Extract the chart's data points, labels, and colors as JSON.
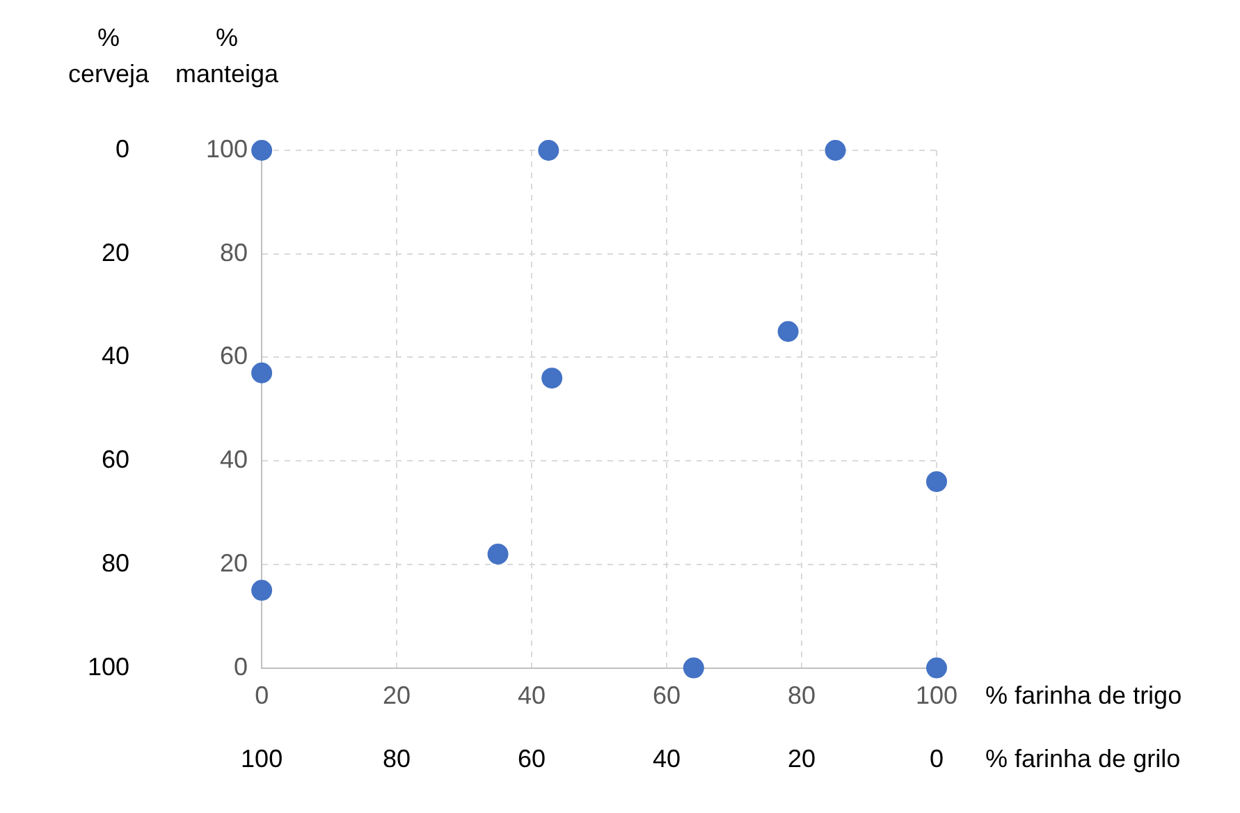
{
  "chart_data": {
    "type": "scatter",
    "xlabel": "% farinha de trigo",
    "x2label": "% farinha de grilo",
    "ylabel": "% manteiga",
    "y2label": "% cerveja",
    "x": [
      0,
      42.5,
      85,
      0,
      43,
      78,
      100,
      35,
      0,
      64,
      100
    ],
    "values": [
      100,
      100,
      100,
      57,
      56,
      65,
      36,
      22,
      15,
      0,
      0
    ],
    "color": "#4472c4",
    "marker": "circle",
    "grid": true,
    "xlim": [
      0,
      100
    ],
    "xticks": [
      0,
      20,
      40,
      60,
      80,
      100
    ],
    "ylim": [
      0,
      100
    ],
    "yticks": [
      0,
      20,
      40,
      60,
      80,
      100
    ],
    "x2lim": [
      100,
      0
    ],
    "x2ticks": [
      100,
      80,
      60,
      40,
      20,
      0
    ],
    "y2lim": [
      100,
      0
    ],
    "y2ticks": [
      0,
      20,
      40,
      60,
      80,
      100
    ]
  }
}
